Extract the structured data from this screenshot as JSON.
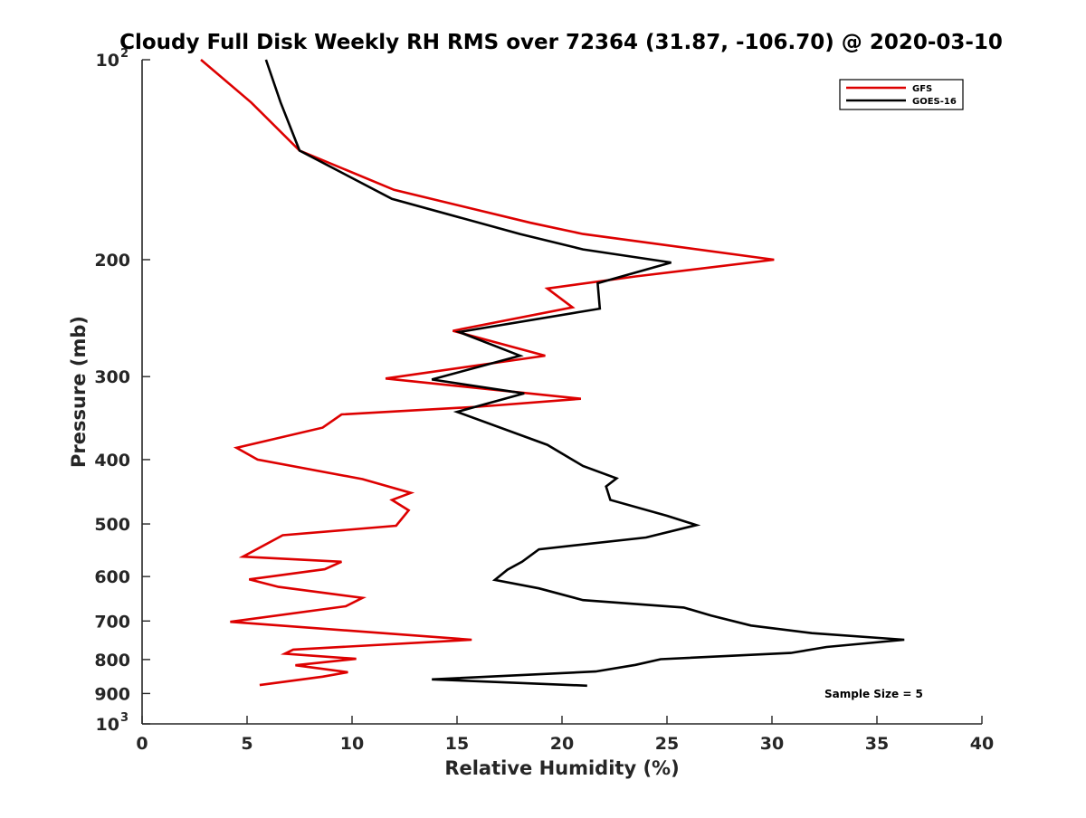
{
  "chart_data": {
    "type": "line",
    "title": "Cloudy Full Disk Weekly RH RMS over 72364 (31.87, -106.70) @ 2020-03-10",
    "xlabel": "Relative Humidity (%)",
    "ylabel": "Pressure (mb)",
    "xlim": [
      0,
      40
    ],
    "ylim": [
      100,
      1000
    ],
    "y_scale": "log",
    "y_reversed": true,
    "grid": false,
    "legend_position": "top-right",
    "x_ticks": [
      0,
      5,
      10,
      15,
      20,
      25,
      30,
      35,
      40
    ],
    "x_tick_labels": [
      "0",
      "5",
      "10",
      "15",
      "20",
      "25",
      "30",
      "35",
      "40"
    ],
    "y_ticks": [
      200,
      300,
      400,
      500,
      600,
      700,
      800,
      900
    ],
    "y_tick_labels": [
      "200",
      "300",
      "400",
      "500",
      "600",
      "700",
      "800",
      "900"
    ],
    "y_limit_labels": [
      {
        "value": 100,
        "base": "10",
        "exp": "2"
      },
      {
        "value": 1000,
        "base": "10",
        "exp": "3"
      }
    ],
    "annotation": "Sample Size = 5",
    "series": [
      {
        "name": "GFS",
        "color": "#dd0000",
        "points": [
          [
            2.8,
            100
          ],
          [
            5.2,
            116
          ],
          [
            7.5,
            137
          ],
          [
            12.0,
            157
          ],
          [
            18.5,
            176
          ],
          [
            21.0,
            183
          ],
          [
            30.1,
            200
          ],
          [
            23.5,
            212
          ],
          [
            19.3,
            221
          ],
          [
            20.5,
            236
          ],
          [
            14.8,
            256
          ],
          [
            19.2,
            279
          ],
          [
            11.6,
            302
          ],
          [
            20.9,
            324
          ],
          [
            16.0,
            333
          ],
          [
            9.5,
            342
          ],
          [
            8.6,
            358
          ],
          [
            4.5,
            384
          ],
          [
            5.5,
            400
          ],
          [
            10.5,
            428
          ],
          [
            12.8,
            449
          ],
          [
            11.9,
            460
          ],
          [
            12.7,
            477
          ],
          [
            12.1,
            503
          ],
          [
            6.7,
            520
          ],
          [
            4.8,
            560
          ],
          [
            9.5,
            570
          ],
          [
            8.7,
            585
          ],
          [
            5.1,
            606
          ],
          [
            6.5,
            622
          ],
          [
            10.5,
            646
          ],
          [
            9.7,
            665
          ],
          [
            4.2,
            702
          ],
          [
            15.7,
            747
          ],
          [
            7.2,
            773
          ],
          [
            6.8,
            784
          ],
          [
            10.2,
            798
          ],
          [
            7.3,
            816
          ],
          [
            9.8,
            836
          ],
          [
            8.6,
            849
          ],
          [
            5.6,
            874
          ]
        ]
      },
      {
        "name": "GOES-16",
        "color": "#000000",
        "points": [
          [
            5.9,
            100
          ],
          [
            6.6,
            116
          ],
          [
            7.5,
            137
          ],
          [
            11.9,
            162
          ],
          [
            18.0,
            183
          ],
          [
            21.0,
            193
          ],
          [
            25.2,
            202
          ],
          [
            21.7,
            217
          ],
          [
            21.8,
            237
          ],
          [
            15.1,
            257
          ],
          [
            18.0,
            279
          ],
          [
            13.8,
            303
          ],
          [
            18.2,
            318
          ],
          [
            15.0,
            339
          ],
          [
            19.3,
            380
          ],
          [
            21.0,
            409
          ],
          [
            22.6,
            427
          ],
          [
            22.1,
            439
          ],
          [
            22.3,
            460
          ],
          [
            25.0,
            486
          ],
          [
            26.4,
            502
          ],
          [
            24.0,
            524
          ],
          [
            18.9,
            546
          ],
          [
            18.1,
            570
          ],
          [
            17.4,
            586
          ],
          [
            16.8,
            607
          ],
          [
            18.9,
            625
          ],
          [
            21.0,
            651
          ],
          [
            25.8,
            668
          ],
          [
            27.1,
            687
          ],
          [
            29.0,
            711
          ],
          [
            31.9,
            730
          ],
          [
            36.3,
            747
          ],
          [
            32.6,
            766
          ],
          [
            30.9,
            782
          ],
          [
            24.7,
            799
          ],
          [
            23.5,
            815
          ],
          [
            21.6,
            834
          ],
          [
            13.8,
            857
          ],
          [
            21.2,
            876
          ]
        ]
      }
    ]
  }
}
